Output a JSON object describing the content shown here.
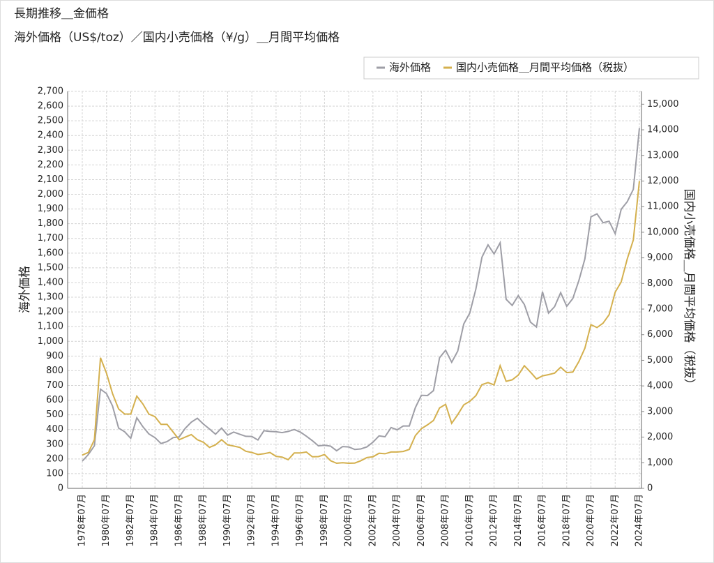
{
  "chart_data": {
    "type": "line",
    "title": "長期推移＿金価格",
    "subtitle": "海外価格（US$/toz）／国内小売価格（¥/g）＿月間平均価格",
    "ylabel": "海外価格",
    "y2label": "国内小売価格＿月間平均価格（税抜）",
    "categories": [
      "1978年07月",
      null,
      null,
      null,
      "1980年07月",
      null,
      null,
      null,
      "1982年07月",
      null,
      null,
      null,
      "1984年07月",
      null,
      null,
      null,
      "1986年07月",
      null,
      null,
      null,
      "1988年07月",
      null,
      null,
      null,
      "1990年07月",
      null,
      null,
      null,
      "1992年07月",
      null,
      null,
      null,
      "1994年07月",
      null,
      null,
      null,
      "1996年07月",
      null,
      null,
      null,
      "1998年07月",
      null,
      null,
      null,
      "2000年07月",
      null,
      null,
      null,
      "2002年07月",
      null,
      null,
      null,
      "2004年07月",
      null,
      null,
      null,
      "2006年07月",
      null,
      null,
      null,
      "2008年07月",
      null,
      null,
      null,
      "2010年07月",
      null,
      null,
      null,
      "2012年07月",
      null,
      null,
      null,
      "2014年07月",
      null,
      null,
      null,
      "2016年07月",
      null,
      null,
      null,
      "2018年07月",
      null,
      null,
      null,
      "2020年07月",
      null,
      null,
      null,
      "2022年07月",
      null,
      null,
      null,
      "2024年07月"
    ],
    "series": [
      {
        "name": "海外価格",
        "color": "#9e9ea6",
        "values": [
          185,
          230,
          290,
          675,
          645,
          560,
          410,
          385,
          340,
          480,
          420,
          370,
          345,
          305,
          318,
          345,
          350,
          408,
          450,
          477,
          437,
          404,
          368,
          410,
          362,
          383,
          368,
          354,
          353,
          329,
          392,
          387,
          385,
          379,
          387,
          400,
          383,
          355,
          324,
          289,
          293,
          287,
          256,
          284,
          282,
          265,
          268,
          282,
          314,
          357,
          351,
          414,
          398,
          424,
          424,
          549,
          633,
          631,
          665,
          889,
          939,
          858,
          934,
          1118,
          1193,
          1356,
          1572,
          1656,
          1594,
          1671,
          1286,
          1244,
          1311,
          1251,
          1131,
          1097,
          1337,
          1192,
          1236,
          1331,
          1238,
          1291,
          1413,
          1560,
          1847,
          1867,
          1807,
          1817,
          1732,
          1898,
          1950,
          2034,
          2450
        ]
      },
      {
        "name": "国内小売価格＿月間平均価格（税抜）",
        "color": "#d4b04e",
        "axis": "y2",
        "values": [
          1300,
          1400,
          1900,
          5100,
          4500,
          3700,
          3100,
          2900,
          2900,
          3600,
          3300,
          2900,
          2800,
          2500,
          2500,
          2200,
          1900,
          2000,
          2100,
          1900,
          1800,
          1600,
          1700,
          1900,
          1700,
          1650,
          1600,
          1450,
          1400,
          1320,
          1350,
          1400,
          1250,
          1220,
          1120,
          1380,
          1380,
          1420,
          1230,
          1240,
          1320,
          1080,
          980,
          1000,
          980,
          990,
          1080,
          1200,
          1230,
          1370,
          1350,
          1420,
          1420,
          1440,
          1520,
          2060,
          2330,
          2480,
          2650,
          3140,
          3280,
          2540,
          2880,
          3260,
          3400,
          3620,
          4050,
          4130,
          4040,
          4790,
          4180,
          4240,
          4420,
          4790,
          4540,
          4270,
          4390,
          4440,
          4500,
          4730,
          4520,
          4540,
          4950,
          5470,
          6390,
          6280,
          6450,
          6780,
          7660,
          8060,
          8960,
          9700,
          12000
        ]
      }
    ],
    "ylim": [
      0,
      2700
    ],
    "yticks": [
      0,
      100,
      200,
      300,
      400,
      500,
      600,
      700,
      800,
      900,
      {
        "value": 1000,
        "label": "1,000"
      },
      {
        "value": 1100,
        "label": "1,100"
      },
      {
        "value": 1200,
        "label": "1,200"
      },
      {
        "value": 1300,
        "label": "1,300"
      },
      {
        "value": 1400,
        "label": "1,400"
      },
      {
        "value": 1500,
        "label": "1,500"
      },
      {
        "value": 1600,
        "label": "1,600"
      },
      {
        "value": 1700,
        "label": "1,700"
      },
      {
        "value": 1800,
        "label": "1,800"
      },
      {
        "value": 1900,
        "label": "1,900"
      },
      {
        "value": 2000,
        "label": "2,000"
      },
      {
        "value": 2100,
        "label": "2,100"
      },
      {
        "value": 2200,
        "label": "2,200"
      },
      {
        "value": 2300,
        "label": "2,300"
      },
      {
        "value": 2400,
        "label": "2,400"
      },
      {
        "value": 2500,
        "label": "2,500"
      },
      {
        "value": 2600,
        "label": "2,600"
      },
      {
        "value": 2700,
        "label": "2,700"
      }
    ],
    "y2lim": [
      0,
      15500
    ],
    "y2ticks": [
      0,
      {
        "value": 1000,
        "label": "1,000"
      },
      {
        "value": 2000,
        "label": "2,000"
      },
      {
        "value": 3000,
        "label": "3,000"
      },
      {
        "value": 4000,
        "label": "4,000"
      },
      {
        "value": 5000,
        "label": "5,000"
      },
      {
        "value": 6000,
        "label": "6,000"
      },
      {
        "value": 7000,
        "label": "7,000"
      },
      {
        "value": 8000,
        "label": "8,000"
      },
      {
        "value": 9000,
        "label": "9,000"
      },
      {
        "value": 10000,
        "label": "10,000"
      },
      {
        "value": 11000,
        "label": "11,000"
      },
      {
        "value": 12000,
        "label": "12,000"
      },
      {
        "value": 13000,
        "label": "13,000"
      },
      {
        "value": 14000,
        "label": "14,000"
      },
      {
        "value": 15000,
        "label": "15,000"
      }
    ],
    "grid": true,
    "legend": "top-right"
  }
}
